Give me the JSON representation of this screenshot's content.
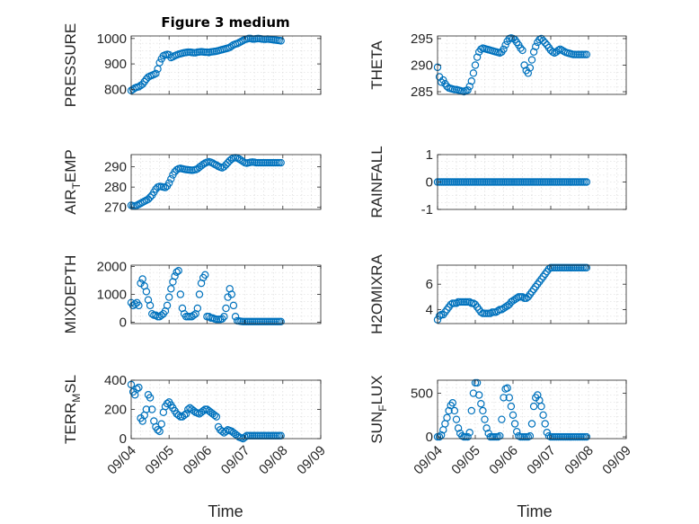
{
  "figure": {
    "x_label": "Time",
    "x_ticks": [
      "09/04",
      "09/05",
      "09/06",
      "09/07",
      "09/08",
      "09/09"
    ],
    "marker_color": "#0072BD"
  },
  "chart_data": [
    {
      "type": "scatter",
      "title": "Figure 3 medium",
      "ylabel": "PRESSURE",
      "ylim": [
        780,
        1010
      ],
      "yticks": [
        800,
        900,
        1000
      ],
      "xlim": [
        0,
        5
      ],
      "grid": true,
      "x": [
        0.0,
        0.05,
        0.1,
        0.15,
        0.2,
        0.25,
        0.3,
        0.35,
        0.4,
        0.45,
        0.5,
        0.55,
        0.6,
        0.65,
        0.7,
        0.75,
        0.8,
        0.85,
        0.9,
        0.95,
        1.0,
        1.05,
        1.1,
        1.15,
        1.2,
        1.25,
        1.3,
        1.35,
        1.4,
        1.45,
        1.5,
        1.55,
        1.6,
        1.65,
        1.7,
        1.75,
        1.8,
        1.85,
        1.9,
        1.95,
        2.0,
        2.05,
        2.1,
        2.15,
        2.2,
        2.25,
        2.3,
        2.35,
        2.4,
        2.45,
        2.5,
        2.55,
        2.6,
        2.65,
        2.7,
        2.75,
        2.8,
        2.85,
        2.9,
        2.95,
        3.0,
        3.05,
        3.1,
        3.15,
        3.2,
        3.25,
        3.3,
        3.35,
        3.4,
        3.45,
        3.5,
        3.55,
        3.6,
        3.65,
        3.7,
        3.75,
        3.8,
        3.85,
        3.9,
        3.95
      ],
      "y": [
        795,
        800,
        805,
        808,
        810,
        815,
        820,
        830,
        840,
        848,
        852,
        855,
        858,
        862,
        880,
        905,
        920,
        932,
        935,
        937,
        936,
        925,
        928,
        932,
        935,
        938,
        940,
        942,
        944,
        945,
        946,
        946,
        945,
        944,
        944,
        946,
        947,
        948,
        947,
        946,
        946,
        945,
        947,
        948,
        949,
        950,
        952,
        954,
        956,
        958,
        960,
        962,
        965,
        970,
        975,
        978,
        980,
        984,
        988,
        992,
        996,
        998,
        1000,
        1000,
        998,
        998,
        999,
        1000,
        999,
        998,
        997,
        997,
        998,
        997,
        996,
        995,
        994,
        993,
        992,
        991
      ]
    },
    {
      "type": "scatter",
      "ylabel": "THETA",
      "ylim": [
        284.5,
        295.5
      ],
      "yticks": [
        285,
        290,
        295
      ],
      "xlim": [
        0,
        5
      ],
      "grid": true,
      "x": [
        0.0,
        0.05,
        0.1,
        0.15,
        0.2,
        0.25,
        0.3,
        0.35,
        0.4,
        0.45,
        0.5,
        0.55,
        0.6,
        0.65,
        0.7,
        0.75,
        0.8,
        0.85,
        0.9,
        0.95,
        1.0,
        1.05,
        1.1,
        1.15,
        1.2,
        1.25,
        1.3,
        1.35,
        1.4,
        1.45,
        1.5,
        1.55,
        1.6,
        1.65,
        1.7,
        1.75,
        1.8,
        1.85,
        1.9,
        1.95,
        2.0,
        2.05,
        2.1,
        2.15,
        2.2,
        2.25,
        2.3,
        2.35,
        2.4,
        2.45,
        2.5,
        2.55,
        2.6,
        2.65,
        2.7,
        2.75,
        2.8,
        2.85,
        2.9,
        2.95,
        3.0,
        3.05,
        3.1,
        3.15,
        3.2,
        3.25,
        3.3,
        3.35,
        3.4,
        3.45,
        3.5,
        3.55,
        3.6,
        3.65,
        3.7,
        3.75,
        3.8,
        3.85,
        3.9,
        3.95
      ],
      "y": [
        289.6,
        287.8,
        286.8,
        287.2,
        286.5,
        286.0,
        285.7,
        285.6,
        285.5,
        285.4,
        285.4,
        285.3,
        285.2,
        285.1,
        285.0,
        285.2,
        285.3,
        286.0,
        287.0,
        288.5,
        290.0,
        291.5,
        292.5,
        293.0,
        293.2,
        293.1,
        293.0,
        292.9,
        292.8,
        292.7,
        292.6,
        292.5,
        292.4,
        292.3,
        292.5,
        293.0,
        293.8,
        294.5,
        295.0,
        295.1,
        295.0,
        294.8,
        294.3,
        293.8,
        293.2,
        292.8,
        290.0,
        289.0,
        288.5,
        289.5,
        291.0,
        292.5,
        293.5,
        294.3,
        294.8,
        295.0,
        294.6,
        294.2,
        293.8,
        293.3,
        292.8,
        292.5,
        292.3,
        292.5,
        292.8,
        293.0,
        292.8,
        292.6,
        292.4,
        292.3,
        292.2,
        292.1,
        292.0,
        292.0,
        292.0,
        292.0,
        292.0,
        292.0,
        292.0,
        292.0
      ]
    },
    {
      "type": "scatter",
      "ylabel": "AIR_TEMP",
      "ylabel_main": "AIR",
      "ylabel_sub": "T",
      "ylabel_rest": "EMP",
      "ylim": [
        269,
        296
      ],
      "yticks": [
        270,
        280,
        290
      ],
      "xlim": [
        0,
        5
      ],
      "grid": true,
      "x": [
        0.0,
        0.05,
        0.1,
        0.15,
        0.2,
        0.25,
        0.3,
        0.35,
        0.4,
        0.45,
        0.5,
        0.55,
        0.6,
        0.65,
        0.7,
        0.75,
        0.8,
        0.85,
        0.9,
        0.95,
        1.0,
        1.05,
        1.1,
        1.15,
        1.2,
        1.25,
        1.3,
        1.35,
        1.4,
        1.45,
        1.5,
        1.55,
        1.6,
        1.65,
        1.7,
        1.75,
        1.8,
        1.85,
        1.9,
        1.95,
        2.0,
        2.05,
        2.1,
        2.15,
        2.2,
        2.25,
        2.3,
        2.35,
        2.4,
        2.45,
        2.5,
        2.55,
        2.6,
        2.65,
        2.7,
        2.75,
        2.8,
        2.85,
        2.9,
        2.95,
        3.0,
        3.05,
        3.1,
        3.15,
        3.2,
        3.25,
        3.3,
        3.35,
        3.4,
        3.45,
        3.5,
        3.55,
        3.6,
        3.65,
        3.7,
        3.75,
        3.8,
        3.85,
        3.9,
        3.95
      ],
      "y": [
        271.0,
        270.8,
        270.7,
        271.0,
        271.5,
        272.0,
        272.5,
        273.0,
        273.5,
        274.0,
        275.0,
        276.0,
        277.5,
        279.0,
        280.0,
        280.3,
        280.2,
        280.0,
        279.8,
        280.5,
        282.0,
        284.0,
        286.0,
        287.5,
        288.5,
        289.0,
        289.2,
        289.0,
        288.8,
        288.6,
        288.5,
        288.4,
        288.3,
        288.4,
        288.6,
        289.0,
        289.8,
        290.5,
        291.2,
        291.8,
        292.2,
        292.5,
        292.2,
        291.8,
        291.2,
        290.8,
        290.2,
        289.8,
        289.5,
        290.0,
        291.0,
        292.0,
        293.0,
        293.8,
        294.3,
        294.5,
        294.3,
        293.8,
        293.2,
        292.6,
        292.0,
        291.8,
        292.0,
        292.2,
        292.3,
        292.2,
        292.0,
        292.0,
        292.0,
        292.0,
        292.0,
        292.0,
        292.0,
        292.0,
        292.0,
        292.0,
        292.0,
        292.0,
        292.0,
        292.0
      ]
    },
    {
      "type": "scatter",
      "ylabel": "RAINFALL",
      "ylim": [
        -1,
        1
      ],
      "yticks": [
        -1,
        0,
        1
      ],
      "xlim": [
        0,
        5
      ],
      "grid": true,
      "x": [
        0.0,
        0.05,
        0.1,
        0.15,
        0.2,
        0.25,
        0.3,
        0.35,
        0.4,
        0.45,
        0.5,
        0.55,
        0.6,
        0.65,
        0.7,
        0.75,
        0.8,
        0.85,
        0.9,
        0.95,
        1.0,
        1.05,
        1.1,
        1.15,
        1.2,
        1.25,
        1.3,
        1.35,
        1.4,
        1.45,
        1.5,
        1.55,
        1.6,
        1.65,
        1.7,
        1.75,
        1.8,
        1.85,
        1.9,
        1.95,
        2.0,
        2.05,
        2.1,
        2.15,
        2.2,
        2.25,
        2.3,
        2.35,
        2.4,
        2.45,
        2.5,
        2.55,
        2.6,
        2.65,
        2.7,
        2.75,
        2.8,
        2.85,
        2.9,
        2.95,
        3.0,
        3.05,
        3.1,
        3.15,
        3.2,
        3.25,
        3.3,
        3.35,
        3.4,
        3.45,
        3.5,
        3.55,
        3.6,
        3.65,
        3.7,
        3.75,
        3.8,
        3.85,
        3.9,
        3.95
      ],
      "y": [
        0,
        0,
        0,
        0,
        0,
        0,
        0,
        0,
        0,
        0,
        0,
        0,
        0,
        0,
        0,
        0,
        0,
        0,
        0,
        0,
        0,
        0,
        0,
        0,
        0,
        0,
        0,
        0,
        0,
        0,
        0,
        0,
        0,
        0,
        0,
        0,
        0,
        0,
        0,
        0,
        0,
        0,
        0,
        0,
        0,
        0,
        0,
        0,
        0,
        0,
        0,
        0,
        0,
        0,
        0,
        0,
        0,
        0,
        0,
        0,
        0,
        0,
        0,
        0,
        0,
        0,
        0,
        0,
        0,
        0,
        0,
        0,
        0,
        0,
        0,
        0,
        0,
        0,
        0,
        0
      ]
    },
    {
      "type": "scatter",
      "ylabel": "MIXDEPTH",
      "ylim": [
        -50,
        2050
      ],
      "yticks": [
        0,
        1000,
        2000
      ],
      "xlim": [
        0,
        5
      ],
      "grid": true,
      "x": [
        0.0,
        0.05,
        0.1,
        0.15,
        0.2,
        0.25,
        0.3,
        0.35,
        0.4,
        0.45,
        0.5,
        0.55,
        0.6,
        0.65,
        0.7,
        0.75,
        0.8,
        0.85,
        0.9,
        0.95,
        1.0,
        1.05,
        1.1,
        1.15,
        1.2,
        1.25,
        1.3,
        1.35,
        1.4,
        1.45,
        1.5,
        1.55,
        1.6,
        1.65,
        1.7,
        1.75,
        1.8,
        1.85,
        1.9,
        1.95,
        2.0,
        2.05,
        2.1,
        2.15,
        2.2,
        2.25,
        2.3,
        2.35,
        2.4,
        2.45,
        2.5,
        2.55,
        2.6,
        2.65,
        2.7,
        2.75,
        2.8,
        2.85,
        2.9,
        2.95,
        3.0,
        3.05,
        3.1,
        3.15,
        3.2,
        3.25,
        3.3,
        3.35,
        3.4,
        3.45,
        3.5,
        3.55,
        3.6,
        3.65,
        3.7,
        3.75,
        3.8,
        3.85,
        3.9,
        3.95
      ],
      "y": [
        700,
        600,
        650,
        700,
        600,
        1400,
        1550,
        1300,
        1100,
        800,
        600,
        300,
        250,
        250,
        200,
        200,
        250,
        300,
        400,
        600,
        900,
        1200,
        1450,
        1650,
        1800,
        1850,
        1000,
        500,
        300,
        200,
        200,
        200,
        200,
        250,
        300,
        500,
        1000,
        1400,
        1600,
        1700,
        200,
        200,
        150,
        150,
        120,
        100,
        100,
        100,
        120,
        200,
        500,
        900,
        1200,
        1000,
        600,
        200,
        50,
        40,
        30,
        20,
        20,
        20,
        20,
        20,
        20,
        20,
        20,
        20,
        20,
        20,
        20,
        20,
        20,
        20,
        20,
        20,
        20,
        20,
        20,
        20
      ]
    },
    {
      "type": "scatter",
      "ylabel": "H2OMIXRA",
      "ylim": [
        2.9,
        7.5
      ],
      "yticks": [
        4,
        6
      ],
      "xlim": [
        0,
        5
      ],
      "grid": true,
      "x": [
        0.0,
        0.05,
        0.1,
        0.15,
        0.2,
        0.25,
        0.3,
        0.35,
        0.4,
        0.45,
        0.5,
        0.55,
        0.6,
        0.65,
        0.7,
        0.75,
        0.8,
        0.85,
        0.9,
        0.95,
        1.0,
        1.05,
        1.1,
        1.15,
        1.2,
        1.25,
        1.3,
        1.35,
        1.4,
        1.45,
        1.5,
        1.55,
        1.6,
        1.65,
        1.7,
        1.75,
        1.8,
        1.85,
        1.9,
        1.95,
        2.0,
        2.05,
        2.1,
        2.15,
        2.2,
        2.25,
        2.3,
        2.35,
        2.4,
        2.45,
        2.5,
        2.55,
        2.6,
        2.65,
        2.7,
        2.75,
        2.8,
        2.85,
        2.9,
        2.95,
        3.0,
        3.05,
        3.1,
        3.15,
        3.2,
        3.25,
        3.3,
        3.35,
        3.4,
        3.45,
        3.5,
        3.55,
        3.6,
        3.65,
        3.7,
        3.75,
        3.8,
        3.85,
        3.9,
        3.95
      ],
      "y": [
        3.2,
        3.5,
        3.6,
        3.6,
        3.8,
        4.0,
        4.2,
        4.4,
        4.5,
        4.5,
        4.5,
        4.6,
        4.6,
        4.6,
        4.6,
        4.6,
        4.6,
        4.6,
        4.5,
        4.5,
        4.4,
        4.2,
        4.0,
        3.8,
        3.7,
        3.7,
        3.7,
        3.7,
        3.7,
        3.8,
        3.8,
        3.8,
        3.9,
        4.0,
        4.0,
        4.1,
        4.2,
        4.3,
        4.4,
        4.6,
        4.7,
        4.8,
        4.9,
        5.0,
        5.0,
        5.0,
        4.9,
        4.9,
        5.0,
        5.2,
        5.4,
        5.6,
        5.8,
        6.0,
        6.2,
        6.4,
        6.6,
        6.8,
        7.0,
        7.2,
        7.3,
        7.3,
        7.3,
        7.3,
        7.3,
        7.3,
        7.3,
        7.3,
        7.3,
        7.3,
        7.3,
        7.3,
        7.3,
        7.3,
        7.3,
        7.3,
        7.3,
        7.3,
        7.3,
        7.3
      ]
    },
    {
      "type": "scatter",
      "ylabel": "TERR_MSL",
      "ylabel_main": "TERR",
      "ylabel_sub": "M",
      "ylabel_rest": "SL",
      "ylim": [
        0,
        400
      ],
      "yticks": [
        0,
        200,
        400
      ],
      "xlim": [
        0,
        5
      ],
      "grid": true,
      "x": [
        0.0,
        0.05,
        0.1,
        0.15,
        0.2,
        0.25,
        0.3,
        0.35,
        0.4,
        0.45,
        0.5,
        0.55,
        0.6,
        0.65,
        0.7,
        0.75,
        0.8,
        0.85,
        0.9,
        0.95,
        1.0,
        1.05,
        1.1,
        1.15,
        1.2,
        1.25,
        1.3,
        1.35,
        1.4,
        1.45,
        1.5,
        1.55,
        1.6,
        1.65,
        1.7,
        1.75,
        1.8,
        1.85,
        1.9,
        1.95,
        2.0,
        2.05,
        2.1,
        2.15,
        2.2,
        2.25,
        2.3,
        2.35,
        2.4,
        2.45,
        2.5,
        2.55,
        2.6,
        2.65,
        2.7,
        2.75,
        2.8,
        2.85,
        2.9,
        2.95,
        3.0,
        3.05,
        3.1,
        3.15,
        3.2,
        3.25,
        3.3,
        3.35,
        3.4,
        3.45,
        3.5,
        3.55,
        3.6,
        3.65,
        3.7,
        3.75,
        3.8,
        3.85,
        3.9,
        3.95
      ],
      "y": [
        370,
        320,
        300,
        340,
        350,
        140,
        120,
        160,
        200,
        300,
        280,
        200,
        120,
        80,
        60,
        50,
        100,
        180,
        220,
        240,
        250,
        230,
        210,
        190,
        170,
        160,
        150,
        150,
        160,
        170,
        200,
        210,
        200,
        190,
        180,
        175,
        170,
        180,
        190,
        200,
        200,
        190,
        180,
        170,
        160,
        150,
        80,
        60,
        50,
        40,
        50,
        60,
        55,
        50,
        40,
        30,
        20,
        10,
        5,
        0,
        10,
        20,
        20,
        20,
        20,
        20,
        20,
        20,
        20,
        20,
        20,
        20,
        20,
        20,
        20,
        20,
        20,
        20,
        20,
        20
      ]
    },
    {
      "type": "scatter",
      "ylabel": "SUN_FLUX",
      "ylabel_main": "SUN",
      "ylabel_sub": "F",
      "ylabel_rest": "LUX",
      "ylim": [
        -20,
        650
      ],
      "yticks": [
        0,
        500
      ],
      "xlim": [
        0,
        5
      ],
      "grid": true,
      "x": [
        0.0,
        0.05,
        0.1,
        0.15,
        0.2,
        0.25,
        0.3,
        0.35,
        0.4,
        0.45,
        0.5,
        0.55,
        0.6,
        0.65,
        0.7,
        0.75,
        0.8,
        0.85,
        0.9,
        0.95,
        1.0,
        1.05,
        1.1,
        1.15,
        1.2,
        1.25,
        1.3,
        1.35,
        1.4,
        1.45,
        1.5,
        1.55,
        1.6,
        1.65,
        1.7,
        1.75,
        1.8,
        1.85,
        1.9,
        1.95,
        2.0,
        2.05,
        2.1,
        2.15,
        2.2,
        2.25,
        2.3,
        2.35,
        2.4,
        2.45,
        2.5,
        2.55,
        2.6,
        2.65,
        2.7,
        2.75,
        2.8,
        2.85,
        2.9,
        2.95,
        3.0,
        3.05,
        3.1,
        3.15,
        3.2,
        3.25,
        3.3,
        3.35,
        3.4,
        3.45,
        3.5,
        3.55,
        3.6,
        3.65,
        3.7,
        3.75,
        3.8,
        3.85,
        3.9,
        3.95
      ],
      "y": [
        0,
        0,
        20,
        80,
        150,
        220,
        300,
        360,
        390,
        300,
        200,
        100,
        40,
        10,
        0,
        0,
        0,
        50,
        300,
        500,
        620,
        620,
        480,
        380,
        300,
        200,
        100,
        40,
        0,
        0,
        0,
        0,
        0,
        10,
        200,
        450,
        550,
        560,
        450,
        350,
        250,
        150,
        60,
        10,
        0,
        0,
        0,
        0,
        0,
        10,
        150,
        350,
        450,
        480,
        420,
        350,
        250,
        150,
        50,
        10,
        0,
        0,
        0,
        0,
        0,
        0,
        0,
        0,
        0,
        0,
        0,
        0,
        0,
        0,
        0,
        0,
        0,
        0,
        0,
        0
      ]
    }
  ]
}
